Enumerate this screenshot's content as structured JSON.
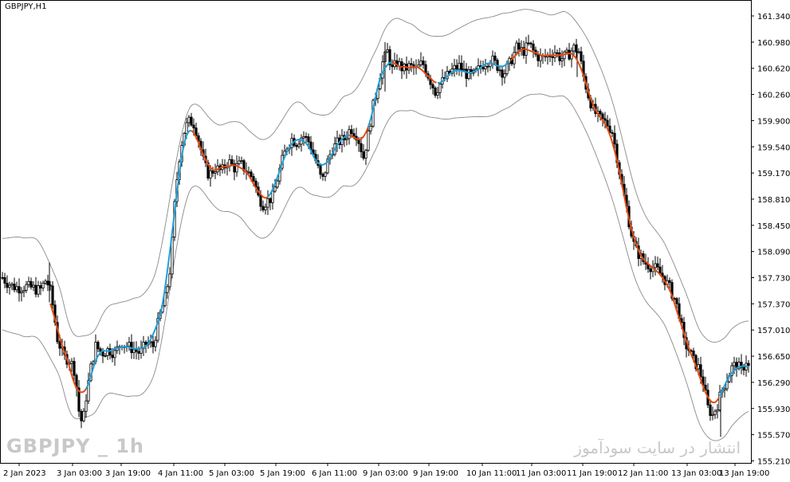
{
  "symbol_label": "GBPJPY,H1",
  "watermark_left": "GBPJPY _ 1h",
  "watermark_right": "انتشار در سایت سودآموز",
  "colors": {
    "candle": "#000000",
    "envelope": "#8a8a8a",
    "ma_up": "#1e9fd6",
    "ma_down": "#e24a10",
    "background": "#ffffff"
  },
  "chart_data": {
    "type": "candlestick",
    "title": "GBPJPY,H1",
    "ylim": [
      155.2,
      161.45
    ],
    "y_ticks": [
      "161.340",
      "160.980",
      "160.620",
      "160.260",
      "159.900",
      "159.540",
      "159.170",
      "158.810",
      "158.450",
      "158.090",
      "157.730",
      "157.370",
      "157.010",
      "156.650",
      "156.290",
      "155.930",
      "155.570",
      "155.210"
    ],
    "x_ticks": [
      "2 Jan 2023",
      "3 Jan 03:00",
      "3 Jan 19:00",
      "4 Jan 11:00",
      "5 Jan 03:00",
      "5 Jan 19:00",
      "6 Jan 11:00",
      "9 Jan 03:00",
      "9 Jan 19:00",
      "10 Jan 11:00",
      "11 Jan 03:00",
      "11 Jan 19:00",
      "12 Jan 11:00",
      "13 Jan 03:00",
      "13 Jan 19:00"
    ],
    "close_path": [
      [
        0,
        157.78
      ],
      [
        8,
        157.68
      ],
      [
        16,
        157.62
      ],
      [
        24,
        157.6
      ],
      [
        32,
        157.62
      ],
      [
        40,
        157.6
      ],
      [
        50,
        157.56
      ],
      [
        58,
        157.72
      ],
      [
        64,
        157.52
      ],
      [
        72,
        156.9
      ],
      [
        80,
        156.65
      ],
      [
        88,
        156.6
      ],
      [
        94,
        156.45
      ],
      [
        100,
        155.8
      ],
      [
        104,
        155.75
      ],
      [
        108,
        156.1
      ],
      [
        114,
        156.5
      ],
      [
        120,
        156.8
      ],
      [
        128,
        156.7
      ],
      [
        136,
        156.75
      ],
      [
        144,
        156.7
      ],
      [
        152,
        156.85
      ],
      [
        160,
        156.8
      ],
      [
        168,
        156.75
      ],
      [
        176,
        156.7
      ],
      [
        184,
        156.85
      ],
      [
        192,
        156.8
      ],
      [
        200,
        157.2
      ],
      [
        208,
        157.5
      ],
      [
        214,
        157.9
      ],
      [
        220,
        158.9
      ],
      [
        226,
        159.5
      ],
      [
        232,
        159.8
      ],
      [
        238,
        159.9
      ],
      [
        244,
        159.85
      ],
      [
        250,
        159.6
      ],
      [
        256,
        159.3
      ],
      [
        262,
        159.15
      ],
      [
        270,
        159.25
      ],
      [
        278,
        159.2
      ],
      [
        286,
        159.35
      ],
      [
        294,
        159.25
      ],
      [
        302,
        159.3
      ],
      [
        310,
        159.2
      ],
      [
        318,
        159.1
      ],
      [
        324,
        158.85
      ],
      [
        330,
        158.75
      ],
      [
        336,
        158.8
      ],
      [
        342,
        158.85
      ],
      [
        348,
        159.1
      ],
      [
        354,
        159.35
      ],
      [
        360,
        159.55
      ],
      [
        366,
        159.65
      ],
      [
        372,
        159.6
      ],
      [
        380,
        159.7
      ],
      [
        388,
        159.6
      ],
      [
        396,
        159.35
      ],
      [
        404,
        159.05
      ],
      [
        410,
        159.3
      ],
      [
        416,
        159.5
      ],
      [
        424,
        159.6
      ],
      [
        432,
        159.65
      ],
      [
        440,
        159.8
      ],
      [
        448,
        159.7
      ],
      [
        456,
        159.4
      ],
      [
        462,
        159.7
      ],
      [
        468,
        160.1
      ],
      [
        474,
        160.4
      ],
      [
        480,
        160.7
      ],
      [
        486,
        160.85
      ],
      [
        492,
        160.6
      ],
      [
        498,
        160.7
      ],
      [
        506,
        160.6
      ],
      [
        514,
        160.65
      ],
      [
        522,
        160.6
      ],
      [
        530,
        160.7
      ],
      [
        538,
        160.5
      ],
      [
        546,
        160.3
      ],
      [
        552,
        160.4
      ],
      [
        560,
        160.5
      ],
      [
        568,
        160.6
      ],
      [
        576,
        160.65
      ],
      [
        584,
        160.55
      ],
      [
        592,
        160.5
      ],
      [
        600,
        160.6
      ],
      [
        608,
        160.7
      ],
      [
        616,
        160.75
      ],
      [
        624,
        160.65
      ],
      [
        632,
        160.55
      ],
      [
        640,
        160.7
      ],
      [
        648,
        160.9
      ],
      [
        656,
        160.85
      ],
      [
        664,
        160.95
      ],
      [
        672,
        160.8
      ],
      [
        680,
        160.75
      ],
      [
        688,
        160.8
      ],
      [
        696,
        160.85
      ],
      [
        704,
        160.75
      ],
      [
        712,
        160.8
      ],
      [
        720,
        160.9
      ],
      [
        726,
        160.85
      ],
      [
        732,
        160.5
      ],
      [
        738,
        160.25
      ],
      [
        744,
        160.05
      ],
      [
        750,
        159.95
      ],
      [
        756,
        159.9
      ],
      [
        762,
        159.85
      ],
      [
        768,
        159.75
      ],
      [
        774,
        159.4
      ],
      [
        780,
        159.0
      ],
      [
        786,
        158.7
      ],
      [
        790,
        158.45
      ],
      [
        796,
        158.15
      ],
      [
        802,
        158.05
      ],
      [
        808,
        157.95
      ],
      [
        816,
        157.9
      ],
      [
        824,
        157.85
      ],
      [
        832,
        157.75
      ],
      [
        840,
        157.6
      ],
      [
        846,
        157.45
      ],
      [
        852,
        157.25
      ],
      [
        858,
        156.85
      ],
      [
        864,
        156.75
      ],
      [
        870,
        156.6
      ],
      [
        876,
        156.5
      ],
      [
        882,
        156.3
      ],
      [
        888,
        155.95
      ],
      [
        894,
        155.85
      ],
      [
        900,
        156.0
      ],
      [
        906,
        156.2
      ],
      [
        912,
        156.35
      ],
      [
        918,
        156.5
      ],
      [
        924,
        156.55
      ],
      [
        930,
        156.45
      ],
      [
        936,
        156.6
      ],
      [
        941,
        156.45
      ]
    ],
    "ma_color_segments": [
      [
        62,
        108,
        "down"
      ],
      [
        108,
        240,
        "up"
      ],
      [
        240,
        336,
        "down"
      ],
      [
        336,
        438,
        "up"
      ],
      [
        438,
        462,
        "down"
      ],
      [
        462,
        492,
        "up"
      ],
      [
        492,
        548,
        "down"
      ],
      [
        548,
        640,
        "up"
      ],
      [
        640,
        726,
        "down"
      ],
      [
        726,
        902,
        "down"
      ],
      [
        902,
        941,
        "up"
      ]
    ]
  }
}
